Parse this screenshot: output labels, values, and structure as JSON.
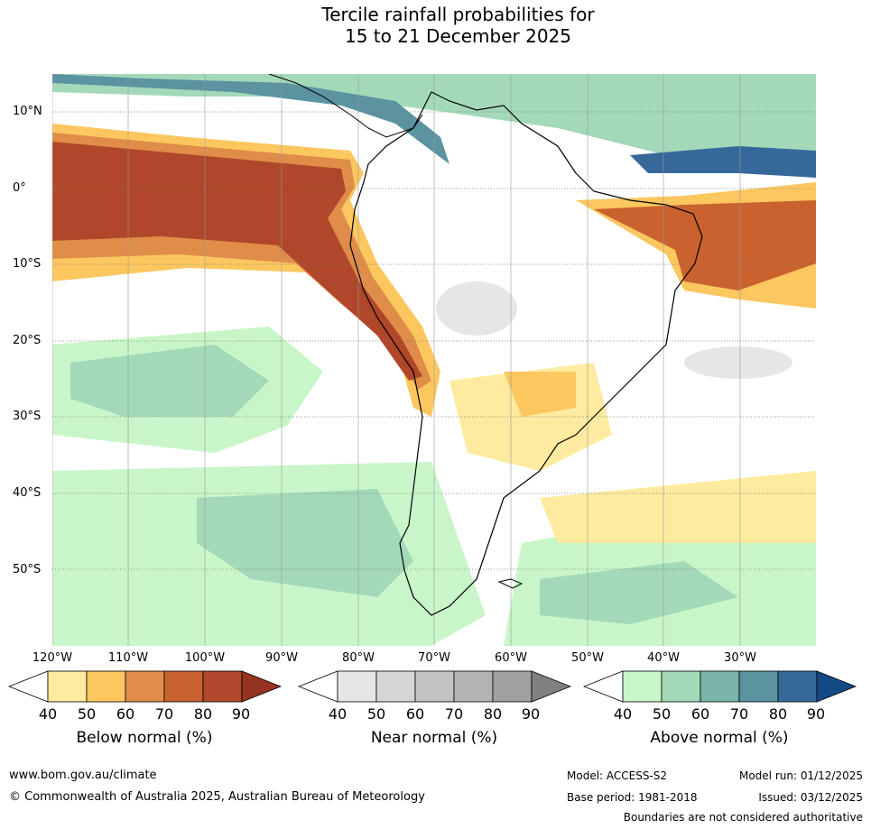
{
  "title_line1": "Tercile rainfall probabilities for",
  "title_line2": "15 to 21 December 2025",
  "lat_labels": [
    "10°N",
    "0°",
    "10°S",
    "20°S",
    "30°S",
    "40°S",
    "50°S"
  ],
  "lon_labels": [
    "120°W",
    "110°W",
    "100°W",
    "90°W",
    "80°W",
    "70°W",
    "60°W",
    "50°W",
    "40°W",
    "30°W"
  ],
  "colorbars": [
    {
      "label": "Below normal (%)",
      "ticks": [
        "40",
        "50",
        "60",
        "70",
        "80",
        "90"
      ],
      "colors": [
        "#ffffff",
        "#feeba0",
        "#fdc760",
        "#df8d49",
        "#c9622f",
        "#b0472a",
        "#96331f"
      ]
    },
    {
      "label": "Near normal (%)",
      "ticks": [
        "40",
        "50",
        "60",
        "70",
        "80",
        "90"
      ],
      "colors": [
        "#ffffff",
        "#e6e6e6",
        "#d5d5d5",
        "#c3c3c3",
        "#b3b3b3",
        "#a0a0a0",
        "#808080"
      ]
    },
    {
      "label": "Above normal (%)",
      "ticks": [
        "40",
        "50",
        "60",
        "70",
        "80",
        "90"
      ],
      "colors": [
        "#ffffff",
        "#c9f6c9",
        "#a3d9b9",
        "#7bb4aa",
        "#5b93a0",
        "#36699a",
        "#134a86"
      ]
    }
  ],
  "footer": {
    "website": "www.bom.gov.au/climate",
    "copyright": "© Commonwealth of Australia 2025, Australian Bureau of Meteorology",
    "model": "Model: ACCESS-S2",
    "base_period": "Base period: 1981-2018",
    "model_run": "Model run: 01/12/2025",
    "issued": "Issued: 03/12/2025",
    "disclaimer": "Boundaries are not considered authoritative"
  }
}
